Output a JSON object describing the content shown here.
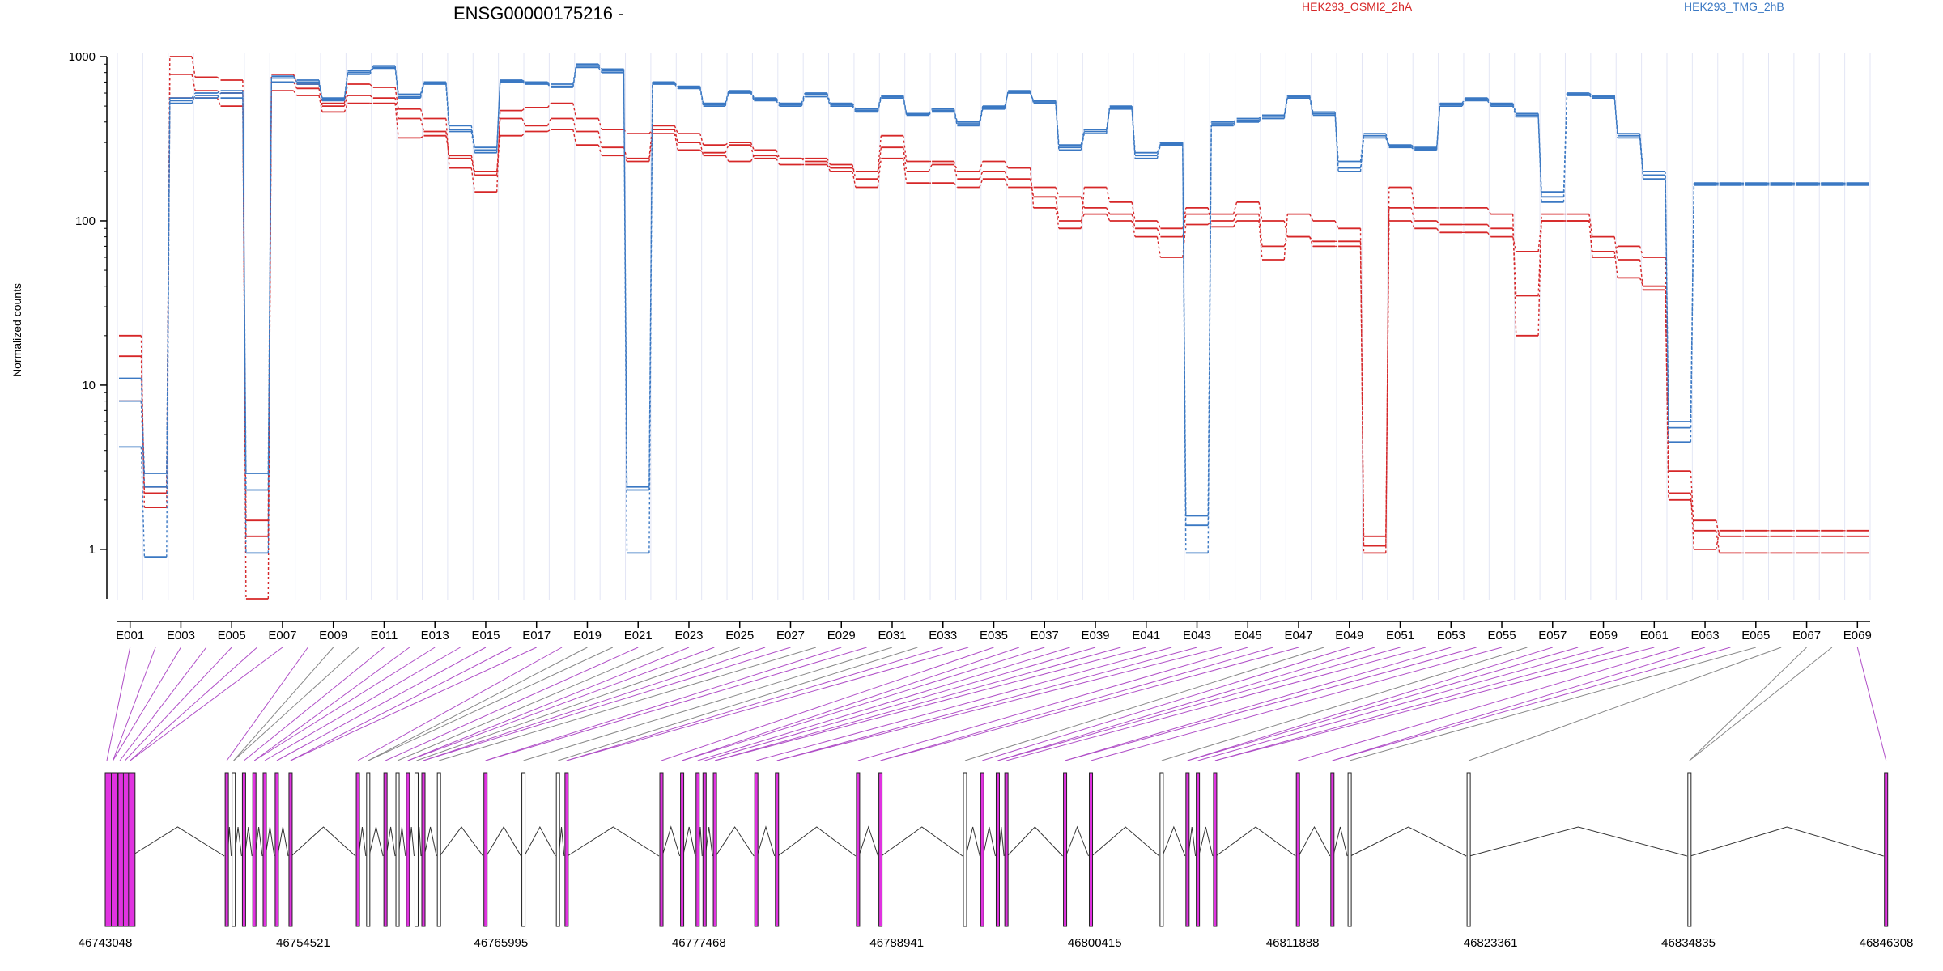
{
  "chart_data": {
    "type": "line",
    "title": "ENSG00000175216 -",
    "ylabel": "Normalized counts",
    "y_scale": "log",
    "ylim": [
      0.5,
      1000
    ],
    "y_ticks": [
      1,
      10,
      100,
      1000
    ],
    "y_tick_labels": [
      "1",
      "10",
      "100",
      "1000"
    ],
    "x_tick_labels": [
      "E001",
      "E003",
      "E005",
      "E007",
      "E009",
      "E011",
      "E013",
      "E015",
      "E017",
      "E019",
      "E021",
      "E023",
      "E025",
      "E027",
      "E029",
      "E031",
      "E033",
      "E035",
      "E037",
      "E039",
      "E041",
      "E043",
      "E045",
      "E047",
      "E049",
      "E051",
      "E053",
      "E055",
      "E057",
      "E059",
      "E061",
      "E063",
      "E065",
      "E067",
      "E069"
    ],
    "grid": "vertical, light",
    "series": [
      {
        "name": "HEK293_OSMI2_2hA",
        "color": "#d62728",
        "replicates": [
          [
            20,
            1.8,
            1000,
            750,
            720,
            0.5,
            780,
            680,
            520,
            680,
            650,
            480,
            420,
            210,
            150,
            470,
            490,
            520,
            420,
            360,
            340,
            360,
            300,
            250,
            230,
            250,
            240,
            230,
            210,
            200,
            330,
            230,
            230,
            200,
            230,
            210,
            120,
            90,
            160,
            130,
            100,
            90,
            120,
            92,
            100,
            58,
            110,
            100,
            90,
            0.95,
            160,
            120,
            120,
            120,
            110,
            20,
            110,
            110,
            80,
            58,
            38,
            3.0,
            1.3,
            0.95
          ],
          [
            15,
            2.2,
            780,
            620,
            600,
            1.5,
            700,
            640,
            500,
            580,
            560,
            420,
            350,
            240,
            190,
            420,
            380,
            420,
            350,
            280,
            240,
            380,
            340,
            290,
            300,
            270,
            240,
            240,
            220,
            180,
            280,
            200,
            220,
            180,
            200,
            180,
            140,
            100,
            110,
            100,
            80,
            60,
            95,
            100,
            110,
            70,
            80,
            75,
            75,
            1.05,
            120,
            100,
            95,
            95,
            90,
            35,
            100,
            100,
            60,
            70,
            60,
            2.2,
            1.0,
            1.3
          ],
          [
            8,
            2.4,
            560,
            560,
            500,
            1.2,
            620,
            580,
            460,
            520,
            520,
            320,
            330,
            250,
            200,
            330,
            350,
            360,
            290,
            250,
            230,
            340,
            270,
            260,
            290,
            240,
            220,
            220,
            200,
            160,
            240,
            170,
            170,
            160,
            180,
            160,
            160,
            140,
            120,
            110,
            90,
            80,
            110,
            110,
            130,
            100,
            80,
            70,
            70,
            1.2,
            100,
            90,
            85,
            85,
            80,
            65,
            100,
            100,
            65,
            45,
            40,
            2.0,
            1.5,
            1.2
          ]
        ]
      },
      {
        "name": "HEK293_TMG_2hB",
        "color": "#3a78c3",
        "replicates": [
          [
            11,
            2.9,
            560,
            600,
            620,
            2.9,
            760,
            700,
            560,
            800,
            880,
            590,
            700,
            380,
            270,
            720,
            700,
            680,
            900,
            840,
            2.4,
            700,
            650,
            520,
            620,
            560,
            520,
            600,
            520,
            480,
            580,
            450,
            480,
            400,
            500,
            600,
            540,
            290,
            360,
            500,
            260,
            300,
            1.6,
            400,
            420,
            440,
            580,
            460,
            230,
            340,
            290,
            280,
            520,
            560,
            520,
            450,
            150,
            600,
            580,
            340,
            200,
            6.0,
            170
          ],
          [
            4.2,
            0.9,
            520,
            580,
            560,
            0.95,
            740,
            720,
            540,
            780,
            850,
            560,
            680,
            350,
            260,
            700,
            680,
            650,
            860,
            800,
            0.95,
            680,
            640,
            500,
            600,
            540,
            500,
            570,
            500,
            460,
            560,
            440,
            460,
            380,
            480,
            620,
            520,
            270,
            340,
            480,
            240,
            290,
            0.95,
            380,
            400,
            420,
            560,
            440,
            200,
            320,
            280,
            270,
            500,
            540,
            500,
            430,
            130,
            580,
            560,
            320,
            180,
            4.5,
            165
          ],
          [
            8,
            2.4,
            540,
            560,
            600,
            2.3,
            700,
            680,
            550,
            820,
            860,
            570,
            690,
            360,
            280,
            710,
            690,
            660,
            880,
            820,
            2.3,
            690,
            660,
            510,
            610,
            550,
            510,
            590,
            510,
            470,
            570,
            445,
            470,
            390,
            490,
            610,
            530,
            280,
            350,
            490,
            250,
            295,
            1.4,
            390,
            410,
            430,
            570,
            450,
            210,
            330,
            285,
            275,
            510,
            550,
            510,
            440,
            140,
            590,
            570,
            330,
            190,
            5.5,
            168
          ]
        ]
      }
    ],
    "gene_model": {
      "start_label": "46743048",
      "tick_labels": [
        "46743048",
        "46754521",
        "46765995",
        "46777468",
        "46788941",
        "46800415",
        "46811888",
        "46823361",
        "46834835",
        "46846308"
      ],
      "exon_color_used": "#e033e0",
      "exon_color_unused": "#ffffff"
    }
  }
}
